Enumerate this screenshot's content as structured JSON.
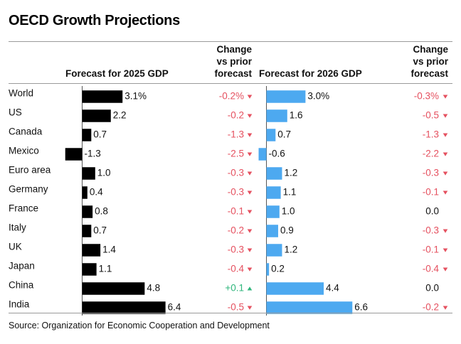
{
  "title": "OECD Growth Projections",
  "headers": {
    "forecast_2025": "Forecast for 2025 GDP",
    "change_2025": [
      "Change",
      "vs prior",
      "forecast"
    ],
    "forecast_2026": "Forecast for 2026 GDP",
    "change_2026": [
      "Change",
      "vs prior",
      "forecast"
    ]
  },
  "source": "Source: Organization for Economic Cooperation and Development",
  "colors": {
    "bar_2025": "#000000",
    "bar_2026": "#4da9f0",
    "negative": "#e5505f",
    "positive": "#2fb67c",
    "neutral": "#111111",
    "axis": "#555555"
  },
  "chart_data": {
    "type": "bar",
    "categories": [
      "World",
      "US",
      "Canada",
      "Mexico",
      "Euro area",
      "Germany",
      "France",
      "Italy",
      "UK",
      "Japan",
      "China",
      "India"
    ],
    "series": [
      {
        "name": "Forecast for 2025 GDP",
        "values": [
          3.1,
          2.2,
          0.7,
          -1.3,
          1.0,
          0.4,
          0.8,
          0.7,
          1.4,
          1.1,
          4.8,
          6.4
        ],
        "labels": [
          "3.1%",
          "2.2",
          "0.7",
          "-1.3",
          "1.0",
          "0.4",
          "0.8",
          "0.7",
          "1.4",
          "1.1",
          "4.8",
          "6.4"
        ]
      },
      {
        "name": "Forecast for 2026 GDP",
        "values": [
          3.0,
          1.6,
          0.7,
          -0.6,
          1.2,
          1.1,
          1.0,
          0.9,
          1.2,
          0.2,
          4.4,
          6.6
        ],
        "labels": [
          "3.0%",
          "1.6",
          "0.7",
          "-0.6",
          "1.2",
          "1.1",
          "1.0",
          "0.9",
          "1.2",
          "0.2",
          "4.4",
          "6.6"
        ]
      }
    ],
    "changes_2025": {
      "values": [
        -0.2,
        -0.2,
        -1.3,
        -2.5,
        -0.3,
        -0.3,
        -0.1,
        -0.2,
        -0.3,
        -0.4,
        0.1,
        -0.5
      ],
      "labels": [
        "-0.2%",
        "-0.2",
        "-1.3",
        "-2.5",
        "-0.3",
        "-0.3",
        "-0.1",
        "-0.2",
        "-0.3",
        "-0.4",
        "+0.1",
        "-0.5"
      ]
    },
    "changes_2026": {
      "values": [
        -0.3,
        -0.5,
        -1.3,
        -2.2,
        -0.3,
        -0.1,
        0.0,
        -0.3,
        -0.1,
        -0.4,
        0.0,
        -0.2
      ],
      "labels": [
        "-0.3%",
        "-0.5",
        "-1.3",
        "-2.2",
        "-0.3",
        "-0.1",
        "0.0",
        "-0.3",
        "-0.1",
        "-0.4",
        "0.0",
        "-0.2"
      ]
    }
  }
}
